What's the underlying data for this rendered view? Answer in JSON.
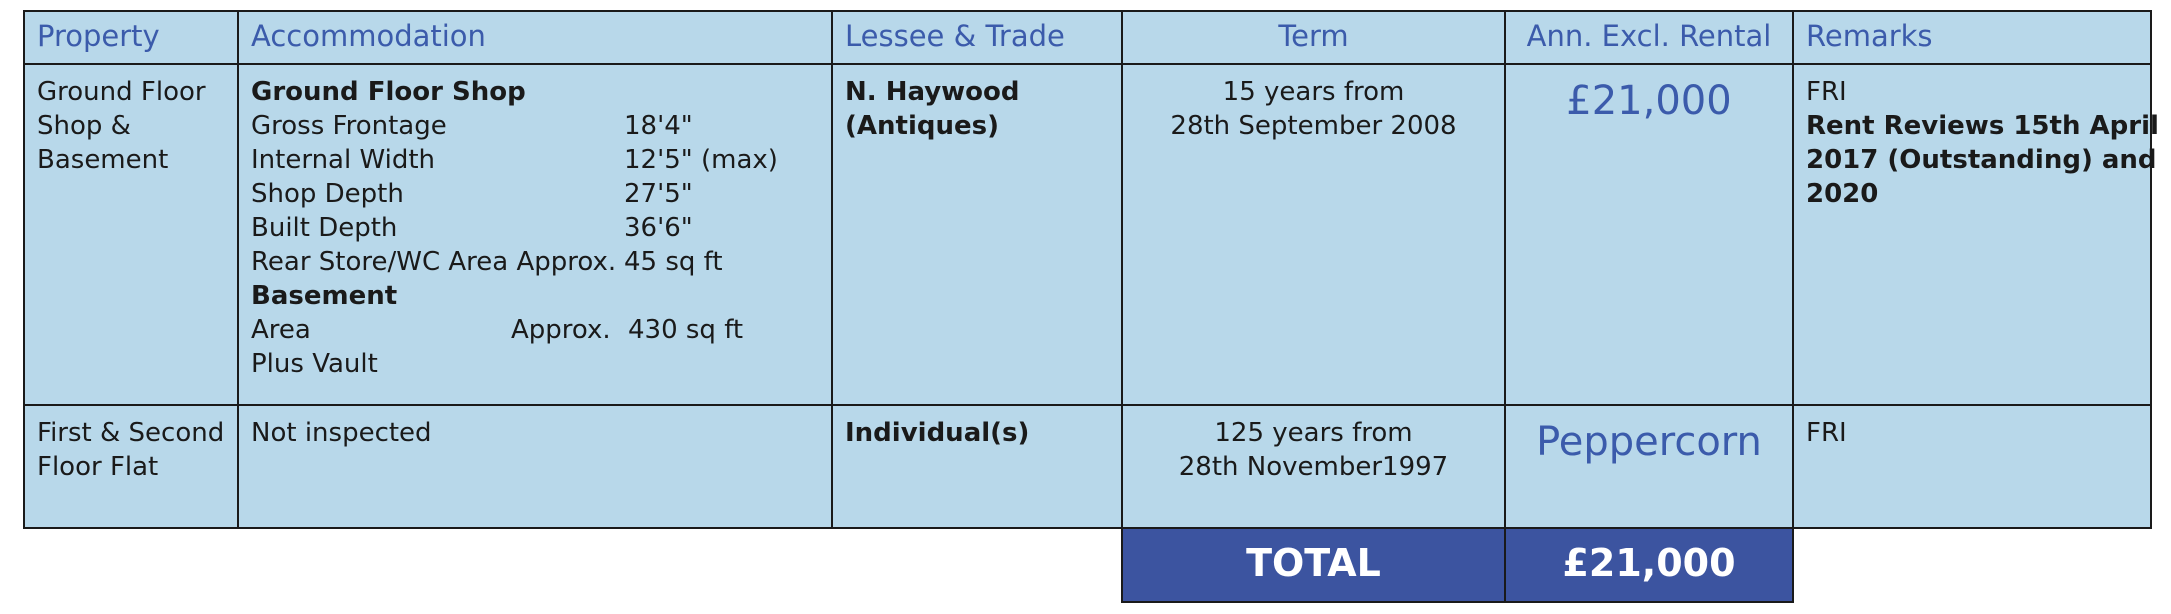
{
  "table": {
    "headers": [
      "Property",
      "Accommodation",
      "Lessee & Trade",
      "Term",
      "Ann. Excl. Rental",
      "Remarks"
    ],
    "rows": [
      {
        "property": [
          "Ground Floor",
          "Shop &",
          "Basement"
        ],
        "accommodation": [
          {
            "heading": "Ground Floor Shop",
            "items": [
              {
                "label": "Gross Frontage",
                "value": "18'4\""
              },
              {
                "label": "Internal Width",
                "value": "12'5\" (max)"
              },
              {
                "label": "Shop Depth",
                "value": "27'5\""
              },
              {
                "label": "Built Depth",
                "value": "36'6\""
              },
              {
                "label": "Rear Store/WC Area Approx.",
                "value": "45 sq ft"
              }
            ]
          },
          {
            "heading": "Basement",
            "items": [
              {
                "label": "Area",
                "note": "Approx.",
                "value": "430 sq ft"
              },
              {
                "label": "Plus Vault"
              }
            ]
          }
        ],
        "lessee": [
          "N. Haywood",
          "(Antiques)"
        ],
        "term": [
          "15 years from",
          "28th September 2008"
        ],
        "rental": "£21,000",
        "remarks": {
          "text": "FRI",
          "bold": [
            "Rent Reviews 15th April",
            "2017 (Outstanding) and",
            "2020"
          ]
        }
      },
      {
        "property": [
          "First & Second",
          "Floor Flat"
        ],
        "accommodation_text": "Not inspected",
        "lessee": [
          "Individual(s)"
        ],
        "term": [
          "125 years from",
          "28th November1997"
        ],
        "rental": "Peppercorn",
        "remarks": {
          "text": "FRI"
        }
      }
    ],
    "total": {
      "label": "TOTAL",
      "value": "£21,000"
    }
  }
}
